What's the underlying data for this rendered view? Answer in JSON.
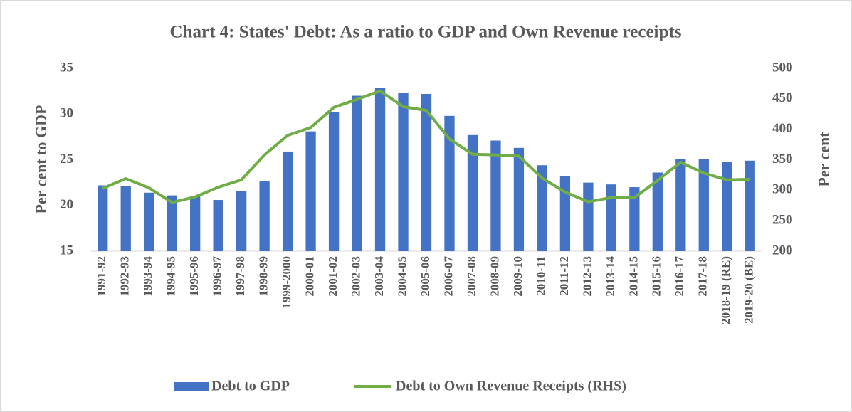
{
  "chart_data": {
    "type": "bar_line",
    "title": "Chart 4: States' Debt: As a ratio to GDP and Own Revenue receipts",
    "ylabel": "Per cent to GDP",
    "y2label": "Per cent",
    "categories": [
      "1991-92",
      "1992-93",
      "1993-94",
      "1994-95",
      "1995-96",
      "1996-97",
      "1997-98",
      "1998-99",
      "1999-2000",
      "2000-01",
      "2001-02",
      "2002-03",
      "2003-04",
      "2004-05",
      "2005-06",
      "2006-07",
      "2007-08",
      "2008-09",
      "2009-10",
      "2010-11",
      "2011-12",
      "2012-13",
      "2013-14",
      "2014-15",
      "2015-16",
      "2016-17",
      "2017-18",
      "2018-19 (RE)",
      "2019-20 (BE)"
    ],
    "series": [
      {
        "name": "Debt to GDP",
        "color": "#4472c4",
        "type": "bar",
        "values": [
          22.2,
          22.1,
          21.4,
          21.1,
          21.0,
          20.6,
          21.6,
          22.7,
          25.9,
          28.1,
          30.2,
          32.0,
          32.9,
          32.3,
          32.2,
          29.8,
          27.7,
          27.1,
          26.3,
          24.4,
          23.2,
          22.5,
          22.3,
          22.0,
          23.6,
          25.1,
          25.1,
          24.8,
          24.9
        ]
      },
      {
        "name": "Debt to Own Revenue Receipts (RHS)",
        "color": "#70ad47",
        "type": "line",
        "axis": "y2",
        "values": [
          303,
          319,
          304,
          280,
          289,
          305,
          317,
          358,
          390,
          403,
          436,
          449,
          463,
          437,
          431,
          384,
          359,
          358,
          356,
          320,
          297,
          281,
          288,
          288,
          316,
          346,
          328,
          317,
          318
        ]
      }
    ],
    "ylim": [
      15,
      35
    ],
    "yticks": [
      15,
      20,
      25,
      30,
      35
    ],
    "y2lim": [
      200,
      500
    ],
    "y2ticks": [
      200,
      250,
      300,
      350,
      400,
      450,
      500
    ],
    "legend": "bottom"
  }
}
